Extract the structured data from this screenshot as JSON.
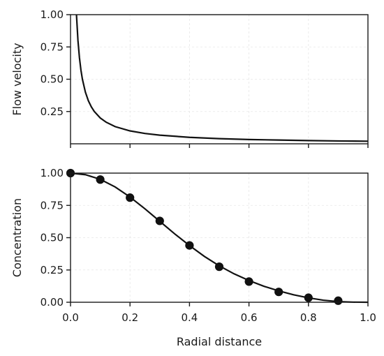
{
  "chart_data": [
    {
      "type": "line",
      "title": "",
      "xlabel": "",
      "ylabel": "Flow velocity",
      "xlim": [
        0.0,
        1.0
      ],
      "ylim": [
        0.0,
        1.0
      ],
      "grid": true,
      "y_ticks": [
        "0.25",
        "0.50",
        "0.75",
        "1.00"
      ],
      "y_tick_values": [
        0.25,
        0.5,
        0.75,
        1.0
      ],
      "x_tick_values": [
        0.0,
        0.2,
        0.4,
        0.6,
        0.8,
        1.0
      ],
      "series": [
        {
          "x": [
            0.02,
            0.025,
            0.03,
            0.035,
            0.04,
            0.05,
            0.06,
            0.07,
            0.08,
            0.1,
            0.12,
            0.15,
            0.2,
            0.25,
            0.3,
            0.4,
            0.5,
            0.6,
            0.7,
            0.8,
            0.9,
            1.0
          ],
          "values": [
            1.0,
            0.8,
            0.667,
            0.571,
            0.5,
            0.4,
            0.333,
            0.286,
            0.25,
            0.2,
            0.167,
            0.133,
            0.1,
            0.08,
            0.067,
            0.05,
            0.04,
            0.033,
            0.029,
            0.025,
            0.022,
            0.02
          ]
        }
      ]
    },
    {
      "type": "line",
      "title": "",
      "xlabel": "Radial distance",
      "ylabel": "Concentration",
      "xlim": [
        0.0,
        1.0
      ],
      "ylim": [
        0.0,
        1.0
      ],
      "grid": true,
      "y_ticks": [
        "0.00",
        "0.25",
        "0.50",
        "0.75",
        "1.00"
      ],
      "y_tick_values": [
        0.0,
        0.25,
        0.5,
        0.75,
        1.0
      ],
      "x_ticks": [
        "0.0",
        "0.2",
        "0.4",
        "0.6",
        "0.8",
        "1.0"
      ],
      "x_tick_values": [
        0.0,
        0.2,
        0.4,
        0.6,
        0.8,
        1.0
      ],
      "series": [
        {
          "x": [
            0.0,
            0.05,
            0.1,
            0.15,
            0.2,
            0.25,
            0.3,
            0.35,
            0.4,
            0.45,
            0.5,
            0.55,
            0.6,
            0.65,
            0.7,
            0.75,
            0.8,
            0.85,
            0.9,
            0.95,
            1.0
          ],
          "values": [
            1.0,
            0.988,
            0.952,
            0.893,
            0.815,
            0.724,
            0.627,
            0.53,
            0.439,
            0.355,
            0.282,
            0.22,
            0.168,
            0.124,
            0.088,
            0.058,
            0.034,
            0.016,
            0.005,
            0.001,
            0.0
          ]
        },
        {
          "markers": true,
          "x": [
            0.0,
            0.1,
            0.2,
            0.3,
            0.4,
            0.5,
            0.6,
            0.7,
            0.8,
            0.9
          ],
          "values": [
            1.0,
            0.95,
            0.81,
            0.63,
            0.44,
            0.275,
            0.16,
            0.08,
            0.035,
            0.012
          ]
        }
      ]
    }
  ]
}
